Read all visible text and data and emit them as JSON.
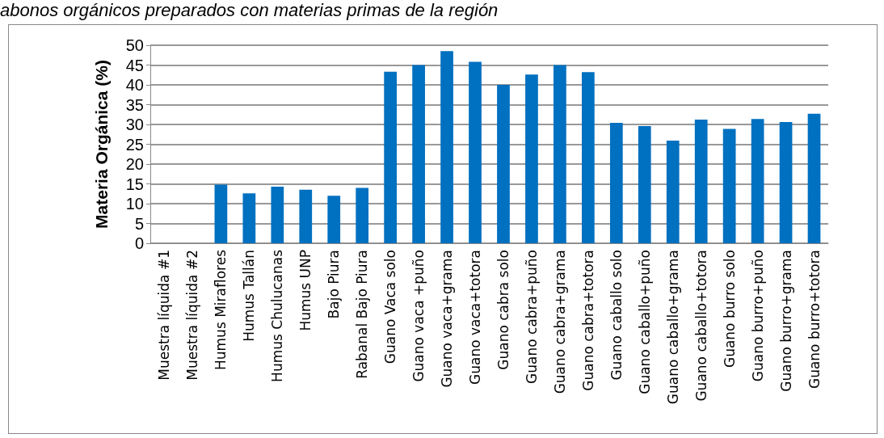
{
  "chart_data": {
    "type": "bar",
    "title": "abonos orgánicos preparados con materias primas de la región",
    "ylabel": "Materia Orgánica (%)",
    "categories": [
      "Muestra líquida #1",
      "Muestra líquida #2",
      "Humus Miraflores",
      "Humus Tallán",
      "Humus Chulucanas",
      "Humus UNP",
      "Bajo Piura",
      "Rabanal Bajo Piura",
      "Guano Vaca solo",
      "Guano vaca +puño",
      "Guano vaca+grama",
      "Guano vaca+totora",
      "Guano cabra solo",
      "Guano cabra+puño",
      "Guano cabra+grama",
      "Guano cabra+totora",
      "Guano caballo solo",
      "Guano caballo+puño",
      "Guano caballo+grama",
      "Guano caballo+totora",
      "Guano burro solo",
      "Guano burro+puño",
      "Guano burro+grama",
      "Guano burro+totora"
    ],
    "values": [
      0,
      0,
      14.8,
      12.6,
      14.3,
      13.5,
      12,
      14,
      43.3,
      45,
      48.5,
      45.8,
      40,
      42.6,
      45,
      43.2,
      30.4,
      29.6,
      25.9,
      31.2,
      28.9,
      31.4,
      30.6,
      32.7
    ],
    "color": "#0070c0",
    "ylim": [
      0,
      50
    ],
    "yticks": [
      0,
      5,
      10,
      15,
      20,
      25,
      30,
      35,
      40,
      45,
      50
    ],
    "grid": "y"
  }
}
